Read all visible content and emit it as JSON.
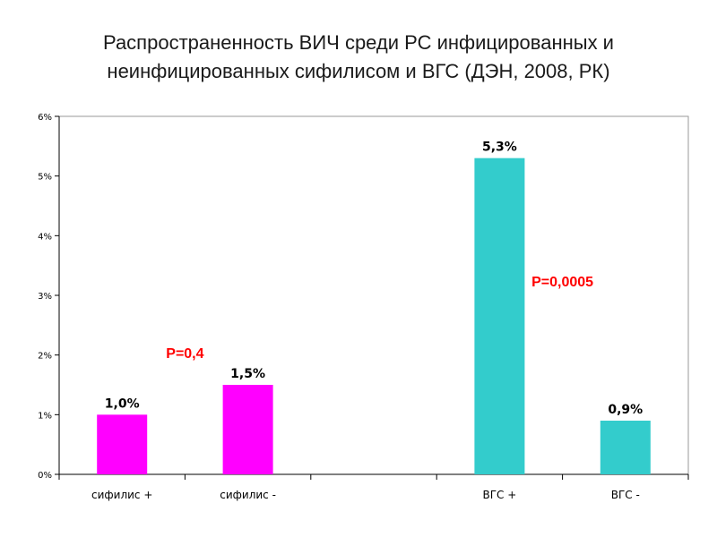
{
  "title_lines": [
    "Распространенность ВИЧ среди РС инфицированных и",
    "неинфицированных сифилисом и ВГС (ДЭН, 2008, РК)"
  ],
  "chart_data": {
    "type": "bar",
    "title": "Распространенность ВИЧ среди РС инфицированных и неинфицированных сифилисом и ВГС (ДЭН, 2008, РК)",
    "categories": [
      "сифилис +",
      "сифилис -",
      "",
      "ВГС +",
      "ВГС -"
    ],
    "values": [
      1.0,
      1.5,
      null,
      5.3,
      0.9
    ],
    "data_labels": [
      "1,0%",
      "1,5%",
      "",
      "5,3%",
      "0,9%"
    ],
    "bar_colors": [
      "#ff00ff",
      "#ff00ff",
      null,
      "#33cccc",
      "#33cccc"
    ],
    "ylim": [
      0,
      6
    ],
    "yticks": [
      0,
      1,
      2,
      3,
      4,
      5,
      6
    ],
    "ytick_labels": [
      "0%",
      "1%",
      "2%",
      "3%",
      "4%",
      "5%",
      "6%"
    ],
    "xlabel": "",
    "ylabel": "",
    "grid": false,
    "legend": "none",
    "annotations": [
      {
        "text": "P=0,4",
        "color": "#ff0000",
        "x_between": [
          0,
          1
        ],
        "y": 1.95
      },
      {
        "text": "P=0,0005",
        "color": "#ff0000",
        "x_between": [
          3,
          4
        ],
        "y": 3.15
      }
    ]
  }
}
